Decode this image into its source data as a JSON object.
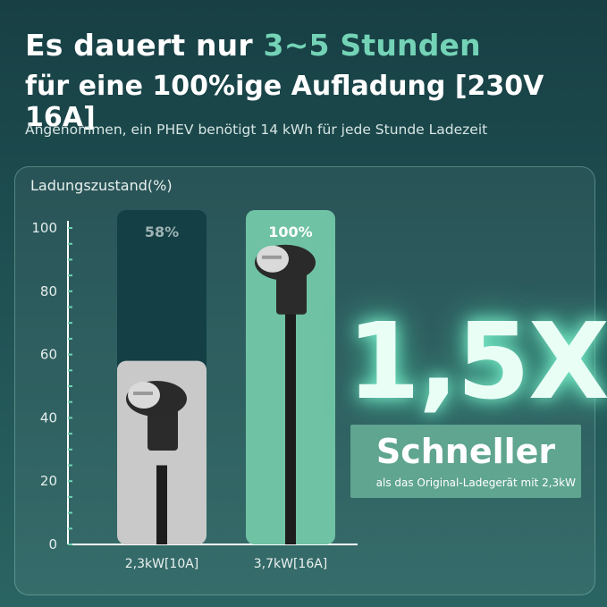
{
  "headline": {
    "line1_prefix": "Es dauert nur ",
    "line1_accent": "3~5 Stunden",
    "line2": "für eine 100%ige Aufladung [230V 16A]"
  },
  "subtitle": "Angenommen, ein PHEV benötigt 14 kWh für jede Stunde Ladezeit",
  "highlight": {
    "big_text": "1,5X",
    "box_title": "Schneller",
    "box_subtitle": "als das Original-Ladegerät mit 2,3kW"
  },
  "colors": {
    "accent": "#74d3b6",
    "bar_track_left": "#143f45",
    "bar_fill_left": "#c9c9c9",
    "bar_right": "#6fc2a4"
  },
  "chart_data": {
    "type": "bar",
    "ylabel": "Ladungszustand(%)",
    "xlabel": "",
    "ylim": [
      0,
      100
    ],
    "yticks": [
      0,
      20,
      40,
      60,
      80,
      100
    ],
    "categories": [
      "2,3kW[10A]",
      "3,7kW[16A]"
    ],
    "values": [
      58,
      100
    ],
    "value_labels": [
      "58%",
      "100%"
    ],
    "grid": false
  }
}
